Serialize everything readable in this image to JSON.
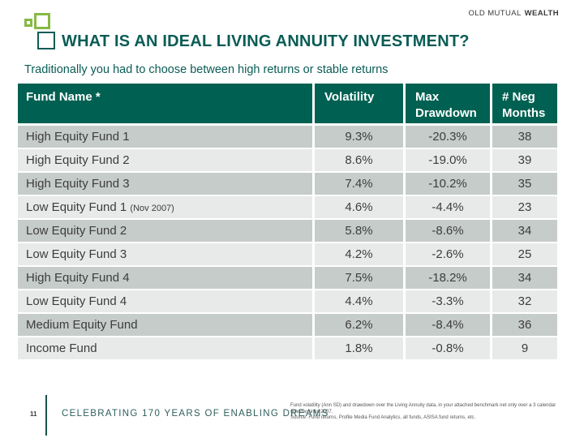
{
  "brand": {
    "old_mutual": "OLD MUTUAL",
    "wealth": "WEALTH"
  },
  "title": "WHAT IS AN IDEAL LIVING ANNUITY INVESTMENT?",
  "subtitle": "Traditionally you had to choose between high returns or stable returns",
  "colors": {
    "accent_green": "#86b944",
    "title_teal": "#0a5c55",
    "table_header_bg": "#006152",
    "row_dark": "#c6ccc9",
    "row_light": "#e7eae8"
  },
  "table": {
    "columns": [
      "Fund Name *",
      "Volatility",
      "Max Drawdown",
      "# Neg Months"
    ],
    "rows": [
      {
        "name": "High Equity Fund 1",
        "volatility": "9.3%",
        "max_drawdown": "-20.3%",
        "neg_months": "38"
      },
      {
        "name": "High Equity Fund 2",
        "volatility": "8.6%",
        "max_drawdown": "-19.0%",
        "neg_months": "39"
      },
      {
        "name": "High Equity Fund 3",
        "volatility": "7.4%",
        "max_drawdown": "-10.2%",
        "neg_months": "35"
      },
      {
        "name": "Low Equity Fund 1",
        "note": "(Nov 2007)",
        "volatility": "4.6%",
        "max_drawdown": "-4.4%",
        "neg_months": "23"
      },
      {
        "name": "Low Equity Fund 2",
        "volatility": "5.8%",
        "max_drawdown": "-8.6%",
        "neg_months": "34"
      },
      {
        "name": "Low Equity Fund 3",
        "volatility": "4.2%",
        "max_drawdown": "-2.6%",
        "neg_months": "25"
      },
      {
        "name": "High Equity Fund 4",
        "volatility": "7.5%",
        "max_drawdown": "-18.2%",
        "neg_months": "34"
      },
      {
        "name": "Low Equity Fund 4",
        "volatility": "4.4%",
        "max_drawdown": "-3.3%",
        "neg_months": "32"
      },
      {
        "name": "Medium Equity Fund",
        "volatility": "6.2%",
        "max_drawdown": "-8.4%",
        "neg_months": "36"
      },
      {
        "name": "Income Fund",
        "volatility": "1.8%",
        "max_drawdown": "-0.8%",
        "neg_months": "9"
      }
    ]
  },
  "footer": {
    "page_number": "11",
    "tagline": "CELEBRATING 170 YEARS OF ENABLING DREAMS",
    "disclaimer_line1": "Fund volatility (Ann SD) and drawdown over the Living Annuity data, in your attached benchmark net only over a 3 calendar window since 2007.",
    "disclaimer_line2": "Source: Fund returns, Profile Media Fund Analytics, all funds, ASISA fund returns, etc."
  }
}
